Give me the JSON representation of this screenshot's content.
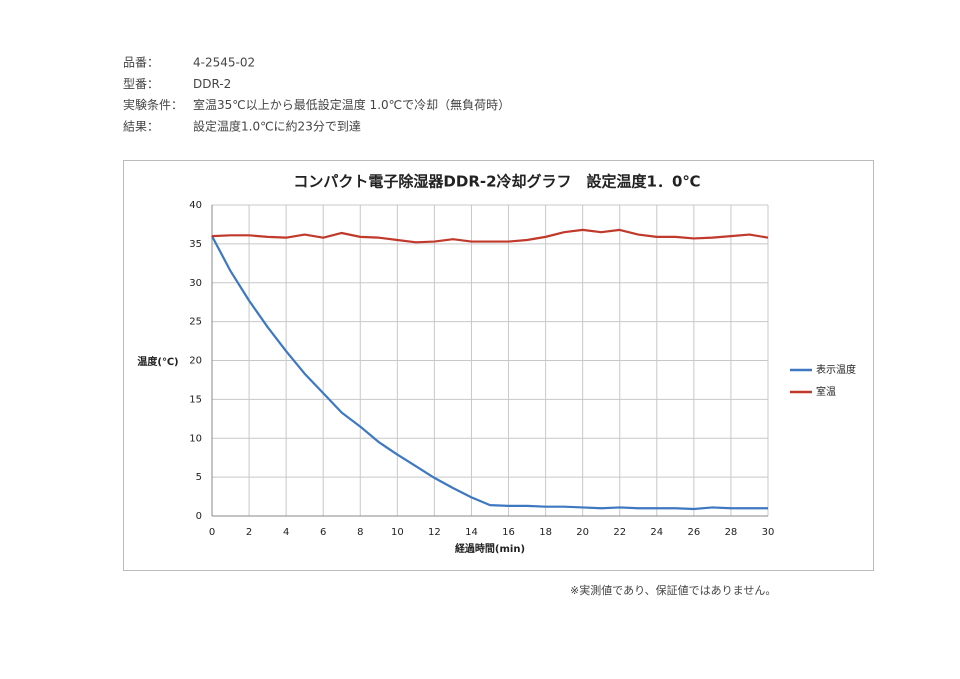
{
  "header": {
    "rows": [
      [
        "品番：",
        "4-2545-02"
      ],
      [
        "型番：",
        "DDR-2"
      ],
      [
        "実験条件：",
        "室温35℃以上から最低設定温度 1.0℃で冷却（無負荷時）"
      ],
      [
        "結果：",
        "設定温度1.0℃に約23分で到達"
      ]
    ]
  },
  "chart_data": {
    "type": "line",
    "title": "コンパクト電子除湿器DDR-2冷却グラフ　設定温度1．0℃",
    "x_label": "経過時間(min)",
    "y_label": "温度(℃)",
    "x": [
      0,
      1,
      2,
      3,
      4,
      5,
      6,
      7,
      8,
      9,
      10,
      11,
      12,
      13,
      14,
      15,
      16,
      17,
      18,
      19,
      20,
      21,
      22,
      23,
      24,
      25,
      26,
      27,
      28,
      29,
      30
    ],
    "series": [
      {
        "name": "表示温度",
        "color": "#3d78c0",
        "values": [
          36,
          31.5,
          27.7,
          24.3,
          21.2,
          18.3,
          15.8,
          13.3,
          11.5,
          9.5,
          7.9,
          6.4,
          4.9,
          3.6,
          2.4,
          1.4,
          1.3,
          1.3,
          1.2,
          1.2,
          1.1,
          1.0,
          1.1,
          1.0,
          1.0,
          1.0,
          0.9,
          1.1,
          1.0,
          1.0,
          1.0
        ]
      },
      {
        "name": "室温",
        "color": "#c0392b",
        "values": [
          36.0,
          36.1,
          36.1,
          35.9,
          35.8,
          36.2,
          35.8,
          36.4,
          35.9,
          35.8,
          35.5,
          35.2,
          35.3,
          35.6,
          35.3,
          35.3,
          35.3,
          35.5,
          35.9,
          36.5,
          36.8,
          36.5,
          36.8,
          36.2,
          35.9,
          35.9,
          35.7,
          35.8,
          36.0,
          36.2,
          35.8
        ]
      }
    ],
    "xlim": [
      0,
      30
    ],
    "xticks": [
      0,
      2,
      4,
      6,
      8,
      10,
      12,
      14,
      16,
      18,
      20,
      22,
      24,
      26,
      28,
      30
    ],
    "ylim": [
      0,
      40
    ],
    "yticks": [
      0,
      5,
      10,
      15,
      20,
      25,
      30,
      35,
      40
    ],
    "grid": true,
    "legend": "right"
  },
  "footnote": "※実測値であり、保証値ではありません。"
}
